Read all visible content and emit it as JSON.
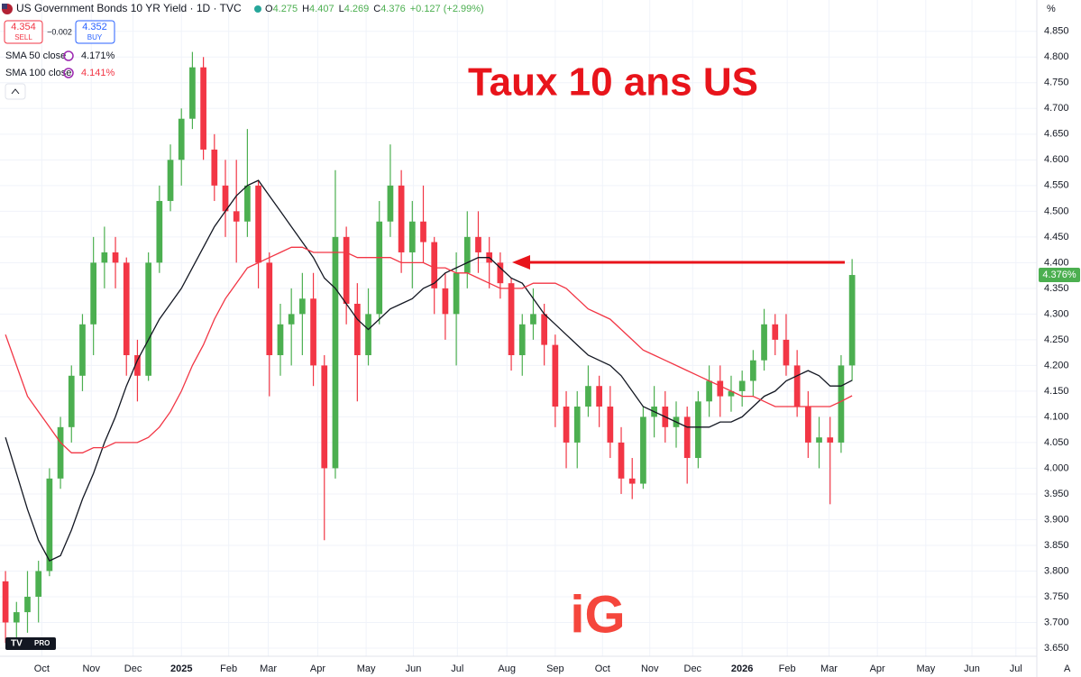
{
  "header": {
    "title": "US Government Bonds 10 YR Yield · 1D · TVC",
    "ohlc": [
      {
        "key": "O",
        "value": "4.275"
      },
      {
        "key": "H",
        "value": "4.407"
      },
      {
        "key": "L",
        "value": "4.269"
      },
      {
        "key": "C",
        "value": "4.376"
      }
    ],
    "change": "+0.127 (+2.99%)",
    "sell": {
      "price": "4.354",
      "label": "SELL"
    },
    "spread": "−0.002",
    "buy": {
      "price": "4.352",
      "label": "BUY"
    },
    "unit": "%",
    "auto_label": "A",
    "last_price_label": "4.376%",
    "tv_badge": "PRO",
    "logo": "iG"
  },
  "chart_data": {
    "type": "candlestick",
    "title": "Taux 10 ans US",
    "up_color": "#4caf50",
    "down_color": "#f23645",
    "grid": true,
    "ylim": [
      3.65,
      4.911
    ],
    "yticks": [
      {
        "value": 3.65,
        "label": "3.650"
      },
      {
        "value": 3.7,
        "label": "3.700"
      },
      {
        "value": 3.75,
        "label": "3.750"
      },
      {
        "value": 3.8,
        "label": "3.800"
      },
      {
        "value": 3.85,
        "label": "3.850"
      },
      {
        "value": 3.9,
        "label": "3.900"
      },
      {
        "value": 3.95,
        "label": "3.950"
      },
      {
        "value": 4.0,
        "label": "4.000"
      },
      {
        "value": 4.05,
        "label": "4.050"
      },
      {
        "value": 4.1,
        "label": "4.100"
      },
      {
        "value": 4.15,
        "label": "4.150"
      },
      {
        "value": 4.2,
        "label": "4.200"
      },
      {
        "value": 4.25,
        "label": "4.250"
      },
      {
        "value": 4.3,
        "label": "4.300"
      },
      {
        "value": 4.35,
        "label": "4.350"
      },
      {
        "value": 4.4,
        "label": "4.400"
      },
      {
        "value": 4.45,
        "label": "4.450"
      },
      {
        "value": 4.5,
        "label": "4.500"
      },
      {
        "value": 4.55,
        "label": "4.550"
      },
      {
        "value": 4.6,
        "label": "4.600"
      },
      {
        "value": 4.65,
        "label": "4.650"
      },
      {
        "value": 4.7,
        "label": "4.700"
      },
      {
        "value": 4.75,
        "label": "4.750"
      },
      {
        "value": 4.8,
        "label": "4.800"
      },
      {
        "value": 4.85,
        "label": "4.850"
      }
    ],
    "xlim": [
      0,
      94.3
    ],
    "xticks": [
      {
        "value": 3.8,
        "label": "Oct"
      },
      {
        "value": 8.3,
        "label": "Nov"
      },
      {
        "value": 12.1,
        "label": "Dec"
      },
      {
        "value": 16.5,
        "label": "2025"
      },
      {
        "value": 20.8,
        "label": "Feb"
      },
      {
        "value": 24.4,
        "label": "Mar"
      },
      {
        "value": 28.9,
        "label": "Apr"
      },
      {
        "value": 33.3,
        "label": "May"
      },
      {
        "value": 37.6,
        "label": "Jun"
      },
      {
        "value": 41.6,
        "label": "Jul"
      },
      {
        "value": 46.1,
        "label": "Aug"
      },
      {
        "value": 50.5,
        "label": "Sep"
      },
      {
        "value": 54.8,
        "label": "Oct"
      },
      {
        "value": 59.1,
        "label": "Nov"
      },
      {
        "value": 63,
        "label": "Dec"
      },
      {
        "value": 67.5,
        "label": "2026"
      },
      {
        "value": 71.6,
        "label": "Feb"
      },
      {
        "value": 75.4,
        "label": "Mar"
      },
      {
        "value": 79.8,
        "label": "Apr"
      },
      {
        "value": 84.2,
        "label": "May"
      },
      {
        "value": 88.4,
        "label": "Jun"
      },
      {
        "value": 92.4,
        "label": "Jul"
      }
    ],
    "candles": {
      "open": [
        3.78,
        3.7,
        3.72,
        3.75,
        3.8,
        3.98,
        4.08,
        4.18,
        4.28,
        4.4,
        4.42,
        4.4,
        4.22,
        4.18,
        4.4,
        4.52,
        4.6,
        4.68,
        4.78,
        4.62,
        4.55,
        4.5,
        4.48,
        4.55,
        4.4,
        4.22,
        4.28,
        4.3,
        4.33,
        4.2,
        4.0,
        4.45,
        4.32,
        4.22,
        4.3,
        4.48,
        4.55,
        4.42,
        4.48,
        4.44,
        4.35,
        4.3,
        4.38,
        4.45,
        4.42,
        4.4,
        4.36,
        4.22,
        4.28,
        4.3,
        4.24,
        4.12,
        4.05,
        4.12,
        4.16,
        4.12,
        4.05,
        3.98,
        3.97,
        4.1,
        4.12,
        4.08,
        4.1,
        4.02,
        4.13,
        4.17,
        4.14,
        4.15,
        4.17,
        4.21,
        4.28,
        4.25,
        4.2,
        4.12,
        4.05,
        4.06,
        4.05,
        4.2
      ],
      "high": [
        3.8,
        3.74,
        3.8,
        3.82,
        4.0,
        4.1,
        4.2,
        4.3,
        4.45,
        4.47,
        4.45,
        4.41,
        4.25,
        4.42,
        4.55,
        4.63,
        4.7,
        4.81,
        4.8,
        4.65,
        4.6,
        4.6,
        4.66,
        4.56,
        4.42,
        4.32,
        4.35,
        4.38,
        4.38,
        4.22,
        4.58,
        4.47,
        4.36,
        4.35,
        4.52,
        4.63,
        4.58,
        4.52,
        4.55,
        4.45,
        4.38,
        4.42,
        4.5,
        4.5,
        4.45,
        4.42,
        4.37,
        4.3,
        4.35,
        4.32,
        4.26,
        4.15,
        4.15,
        4.2,
        4.18,
        4.16,
        4.08,
        4.02,
        4.12,
        4.16,
        4.15,
        4.13,
        4.12,
        4.15,
        4.2,
        4.2,
        4.18,
        4.19,
        4.23,
        4.31,
        4.3,
        4.3,
        4.23,
        4.15,
        4.1,
        4.1,
        4.22,
        4.407
      ],
      "low": [
        3.66,
        3.62,
        3.68,
        3.7,
        3.79,
        3.96,
        4.05,
        4.15,
        4.22,
        4.35,
        4.35,
        4.18,
        4.13,
        4.17,
        4.38,
        4.5,
        4.55,
        4.66,
        4.6,
        4.52,
        4.45,
        4.4,
        4.45,
        4.35,
        4.14,
        4.18,
        4.2,
        4.22,
        4.16,
        3.86,
        3.98,
        4.28,
        4.13,
        4.2,
        4.28,
        4.45,
        4.38,
        4.35,
        4.4,
        4.3,
        4.25,
        4.2,
        4.35,
        4.38,
        4.35,
        4.33,
        4.19,
        4.18,
        4.25,
        4.2,
        4.08,
        4.0,
        4.0,
        4.1,
        4.08,
        4.02,
        3.95,
        3.94,
        3.96,
        4.06,
        4.05,
        4.04,
        3.97,
        4.0,
        4.1,
        4.1,
        4.11,
        4.12,
        4.14,
        4.19,
        4.22,
        4.18,
        4.1,
        4.02,
        4.0,
        3.93,
        4.03,
        4.17
      ],
      "close": [
        3.7,
        3.72,
        3.75,
        3.8,
        3.98,
        4.08,
        4.18,
        4.28,
        4.4,
        4.42,
        4.4,
        4.22,
        4.18,
        4.4,
        4.52,
        4.6,
        4.68,
        4.78,
        4.62,
        4.55,
        4.5,
        4.48,
        4.55,
        4.4,
        4.22,
        4.28,
        4.3,
        4.33,
        4.2,
        4.0,
        4.45,
        4.32,
        4.22,
        4.3,
        4.48,
        4.55,
        4.42,
        4.48,
        4.44,
        4.35,
        4.3,
        4.38,
        4.45,
        4.42,
        4.4,
        4.36,
        4.22,
        4.28,
        4.3,
        4.24,
        4.12,
        4.05,
        4.12,
        4.16,
        4.12,
        4.05,
        3.98,
        3.97,
        4.1,
        4.12,
        4.08,
        4.1,
        4.02,
        4.13,
        4.17,
        4.14,
        4.15,
        4.17,
        4.21,
        4.28,
        4.25,
        4.2,
        4.12,
        4.05,
        4.06,
        4.05,
        4.2,
        4.376
      ]
    },
    "series": [
      {
        "name": "SMA 50 close",
        "color": "#131722",
        "value_label": "4.171%",
        "values": [
          4.06,
          3.99,
          3.92,
          3.86,
          3.82,
          3.83,
          3.88,
          3.94,
          3.99,
          4.05,
          4.1,
          4.16,
          4.21,
          4.25,
          4.29,
          4.32,
          4.35,
          4.39,
          4.43,
          4.47,
          4.5,
          4.53,
          4.55,
          4.56,
          4.53,
          4.5,
          4.47,
          4.44,
          4.41,
          4.37,
          4.35,
          4.32,
          4.29,
          4.27,
          4.29,
          4.31,
          4.32,
          4.33,
          4.35,
          4.36,
          4.38,
          4.39,
          4.4,
          4.41,
          4.41,
          4.39,
          4.37,
          4.36,
          4.33,
          4.3,
          4.28,
          4.26,
          4.24,
          4.22,
          4.21,
          4.2,
          4.18,
          4.15,
          4.12,
          4.11,
          4.1,
          4.09,
          4.08,
          4.08,
          4.08,
          4.09,
          4.09,
          4.1,
          4.12,
          4.14,
          4.15,
          4.17,
          4.18,
          4.19,
          4.18,
          4.16,
          4.16,
          4.171
        ]
      },
      {
        "name": "SMA 100 close",
        "color": "#f23645",
        "value_label": "4.141%",
        "values": [
          4.26,
          4.2,
          4.14,
          4.11,
          4.08,
          4.05,
          4.03,
          4.03,
          4.04,
          4.04,
          4.05,
          4.05,
          4.05,
          4.06,
          4.08,
          4.11,
          4.15,
          4.2,
          4.24,
          4.29,
          4.33,
          4.36,
          4.39,
          4.4,
          4.41,
          4.42,
          4.43,
          4.43,
          4.42,
          4.42,
          4.42,
          4.42,
          4.41,
          4.41,
          4.41,
          4.41,
          4.4,
          4.4,
          4.4,
          4.39,
          4.39,
          4.38,
          4.38,
          4.37,
          4.36,
          4.35,
          4.35,
          4.35,
          4.36,
          4.36,
          4.36,
          4.35,
          4.33,
          4.31,
          4.3,
          4.29,
          4.27,
          4.25,
          4.23,
          4.22,
          4.21,
          4.2,
          4.19,
          4.18,
          4.17,
          4.16,
          4.15,
          4.14,
          4.14,
          4.13,
          4.12,
          4.12,
          4.12,
          4.12,
          4.12,
          4.12,
          4.13,
          4.141
        ]
      }
    ]
  }
}
